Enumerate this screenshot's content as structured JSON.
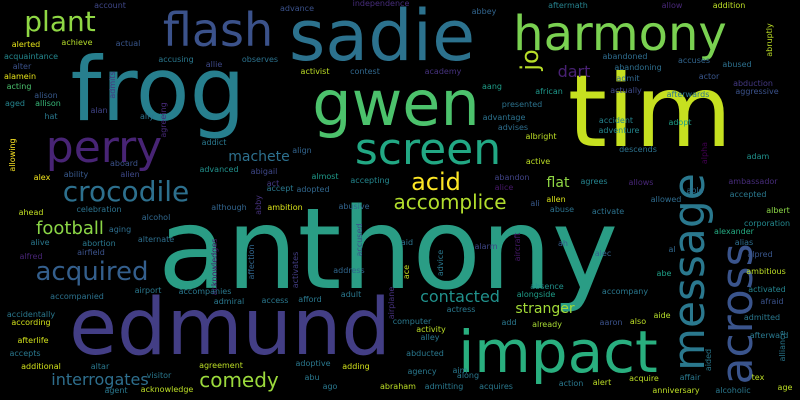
{
  "background_color": "#000000",
  "words": [
    {
      "text": "anthony",
      "color": "#2a9d85"
    },
    {
      "text": "tim",
      "color": "#c6e020"
    },
    {
      "text": "frog",
      "color": "#277f8e"
    },
    {
      "text": "edmund",
      "color": "#433e85"
    },
    {
      "text": "sadie",
      "color": "#2c728e"
    },
    {
      "text": "gwen",
      "color": "#4cc26c"
    },
    {
      "text": "impact",
      "color": "#29af7f"
    },
    {
      "text": "harmony",
      "color": "#7ad151"
    },
    {
      "text": "flash",
      "color": "#3b528b"
    },
    {
      "text": "screen",
      "color": "#22a884"
    },
    {
      "text": "perry",
      "color": "#482475"
    },
    {
      "text": "message",
      "color": "#2a788e"
    },
    {
      "text": "across",
      "color": "#3a548c"
    },
    {
      "text": "crocodile",
      "color": "#2d708e"
    },
    {
      "text": "acquired",
      "color": "#345f8d"
    },
    {
      "text": "plant",
      "color": "#8fd744"
    },
    {
      "text": "acid",
      "color": "#fde725"
    },
    {
      "text": "accomplice",
      "color": "#b2dd2d"
    },
    {
      "text": "comedy",
      "color": "#9bd93c"
    },
    {
      "text": "football",
      "color": "#8bd646"
    },
    {
      "text": "interrogates",
      "color": "#2e6f8e"
    },
    {
      "text": "contacted",
      "color": "#21918c"
    },
    {
      "text": "machete",
      "color": "#2d708e"
    },
    {
      "text": "stranger",
      "color": "#a2da37"
    },
    {
      "text": "jo",
      "color": "#b8de29"
    },
    {
      "text": "dart",
      "color": "#482173"
    },
    {
      "text": "flat",
      "color": "#8fd744"
    },
    {
      "text": "account",
      "color": "#3f4788"
    },
    {
      "text": "advance",
      "color": "#3b528b"
    },
    {
      "text": "independence",
      "color": "#472d7b"
    },
    {
      "text": "allow",
      "color": "#482878"
    },
    {
      "text": "addition",
      "color": "#bddf26"
    },
    {
      "text": "abbey",
      "color": "#32658e"
    },
    {
      "text": "aftermath",
      "color": "#26828e"
    },
    {
      "text": "alerted",
      "color": "#e5e419"
    },
    {
      "text": "achieve",
      "color": "#b5de2b"
    },
    {
      "text": "actual",
      "color": "#39568c"
    },
    {
      "text": "acquaintance",
      "color": "#24878e"
    },
    {
      "text": "accusing",
      "color": "#2a788e"
    },
    {
      "text": "allie",
      "color": "#3e4989"
    },
    {
      "text": "observes",
      "color": "#2c728e"
    },
    {
      "text": "activist",
      "color": "#bddf26"
    },
    {
      "text": "contest",
      "color": "#31688e"
    },
    {
      "text": "academy",
      "color": "#46327e"
    },
    {
      "text": "abandoned",
      "color": "#2f6c8e"
    },
    {
      "text": "abandoning",
      "color": "#2e6f8e"
    },
    {
      "text": "accuses",
      "color": "#32658e"
    },
    {
      "text": "abused",
      "color": "#2d708e"
    },
    {
      "text": "alter",
      "color": "#3b528b"
    },
    {
      "text": "alamein",
      "color": "#e7e419"
    },
    {
      "text": "acting",
      "color": "#4ac16d"
    },
    {
      "text": "admits",
      "color": "#453781"
    },
    {
      "text": "admit",
      "color": "#31688e"
    },
    {
      "text": "actor",
      "color": "#39568c"
    },
    {
      "text": "abduction",
      "color": "#443983"
    },
    {
      "text": "aggressive",
      "color": "#3b528b"
    },
    {
      "text": "actually",
      "color": "#3e4989"
    },
    {
      "text": "alison",
      "color": "#38598c"
    },
    {
      "text": "allison",
      "color": "#37b878"
    },
    {
      "text": "alan",
      "color": "#414487"
    },
    {
      "text": "aged",
      "color": "#25848e"
    },
    {
      "text": "aang",
      "color": "#1f9e89"
    },
    {
      "text": "african",
      "color": "#1f988b"
    },
    {
      "text": "afterwards",
      "color": "#2a768e"
    },
    {
      "text": "ally",
      "color": "#2c728e"
    },
    {
      "text": "agreeing",
      "color": "#472a7a"
    },
    {
      "text": "presented",
      "color": "#2c738e"
    },
    {
      "text": "advantage",
      "color": "#2c728e"
    },
    {
      "text": "advises",
      "color": "#2e6e8e"
    },
    {
      "text": "accident",
      "color": "#25848e"
    },
    {
      "text": "adventure",
      "color": "#24868e"
    },
    {
      "text": "adopt",
      "color": "#1fa088"
    },
    {
      "text": "hat",
      "color": "#2a788e"
    },
    {
      "text": "addict",
      "color": "#2a788e"
    },
    {
      "text": "align",
      "color": "#32648e"
    },
    {
      "text": "albright",
      "color": "#bddf26"
    },
    {
      "text": "alpha",
      "color": "#440154"
    },
    {
      "text": "descends",
      "color": "#2c728e"
    },
    {
      "text": "adam",
      "color": "#20928c"
    },
    {
      "text": "ability",
      "color": "#38598c"
    },
    {
      "text": "alien",
      "color": "#3e4989"
    },
    {
      "text": "abigail",
      "color": "#3f4889"
    },
    {
      "text": "advanced",
      "color": "#21918c"
    },
    {
      "text": "act",
      "color": "#453882"
    },
    {
      "text": "almost",
      "color": "#1f9a8a"
    },
    {
      "text": "active",
      "color": "#bddf26"
    },
    {
      "text": "alice",
      "color": "#48186a"
    },
    {
      "text": "abandon",
      "color": "#414487"
    },
    {
      "text": "aboard",
      "color": "#3b528b"
    },
    {
      "text": "alex",
      "color": "#f1e51d"
    },
    {
      "text": "accepting",
      "color": "#24878e"
    },
    {
      "text": "accept",
      "color": "#2a788e"
    },
    {
      "text": "adopted",
      "color": "#31678e"
    },
    {
      "text": "agrees",
      "color": "#25838e"
    },
    {
      "text": "allows",
      "color": "#482677"
    },
    {
      "text": "able",
      "color": "#2e6e8e"
    },
    {
      "text": "ambassador",
      "color": "#472c7a"
    },
    {
      "text": "accepted",
      "color": "#2a788e"
    },
    {
      "text": "corporation",
      "color": "#23888e"
    },
    {
      "text": "allowing",
      "color": "#fde725"
    },
    {
      "text": "ahead",
      "color": "#c2df23"
    },
    {
      "text": "celebration",
      "color": "#2c728e"
    },
    {
      "text": "alcohol",
      "color": "#31688e"
    },
    {
      "text": "although",
      "color": "#32658e"
    },
    {
      "text": "ambition",
      "color": "#dae319"
    },
    {
      "text": "abusive",
      "color": "#32648e"
    },
    {
      "text": "ali",
      "color": "#38598c"
    },
    {
      "text": "allen",
      "color": "#d8e219"
    },
    {
      "text": "abuse",
      "color": "#2c728e"
    },
    {
      "text": "activate",
      "color": "#2c728e"
    },
    {
      "text": "allowed",
      "color": "#2f6c8e"
    },
    {
      "text": "albert",
      "color": "#8bd646"
    },
    {
      "text": "aging",
      "color": "#2e6e8e"
    },
    {
      "text": "alternate",
      "color": "#2e6f8e"
    },
    {
      "text": "abby",
      "color": "#46327e"
    },
    {
      "text": "accused",
      "color": "#3c508b"
    },
    {
      "text": "aid",
      "color": "#2c738e"
    },
    {
      "text": "alarm",
      "color": "#3f4788"
    },
    {
      "text": "aircraft",
      "color": "#481a6c"
    },
    {
      "text": "ah",
      "color": "#365c8d"
    },
    {
      "text": "alec",
      "color": "#33638d"
    },
    {
      "text": "alexander",
      "color": "#25ab82"
    },
    {
      "text": "al",
      "color": "#31688e"
    },
    {
      "text": "alias",
      "color": "#2e6e8e"
    },
    {
      "text": "alfred",
      "color": "#482576"
    },
    {
      "text": "alive",
      "color": "#2a788e"
    },
    {
      "text": "airfield",
      "color": "#3b528b"
    },
    {
      "text": "abortion",
      "color": "#2a788e"
    },
    {
      "text": "acknowledges",
      "color": "#471365"
    },
    {
      "text": "affection",
      "color": "#31668e"
    },
    {
      "text": "activates",
      "color": "#433e85"
    },
    {
      "text": "address",
      "color": "#31678e"
    },
    {
      "text": "ace",
      "color": "#c8e020"
    },
    {
      "text": "advice",
      "color": "#2a788e"
    },
    {
      "text": "airplane",
      "color": "#46327e"
    },
    {
      "text": "abe",
      "color": "#1fa088"
    },
    {
      "text": "ambitious",
      "color": "#bddf26"
    },
    {
      "text": "alpred",
      "color": "#39568c"
    },
    {
      "text": "activated",
      "color": "#25838e"
    },
    {
      "text": "afraid",
      "color": "#3b528b"
    },
    {
      "text": "accompanied",
      "color": "#2c728e"
    },
    {
      "text": "airport",
      "color": "#2a788e"
    },
    {
      "text": "accompanies",
      "color": "#2a788e"
    },
    {
      "text": "admiral",
      "color": "#2a788e"
    },
    {
      "text": "access",
      "color": "#2a788e"
    },
    {
      "text": "afford",
      "color": "#2a788e"
    },
    {
      "text": "adult",
      "color": "#2a788e"
    },
    {
      "text": "alongside",
      "color": "#1f9e89"
    },
    {
      "text": "absence",
      "color": "#21918c"
    },
    {
      "text": "accompany",
      "color": "#2a788e"
    },
    {
      "text": "aide",
      "color": "#b5de2b"
    },
    {
      "text": "admitted",
      "color": "#2a788e"
    },
    {
      "text": "accidentally",
      "color": "#2a788e"
    },
    {
      "text": "according",
      "color": "#d2e21b"
    },
    {
      "text": "actress",
      "color": "#2a788e"
    },
    {
      "text": "add",
      "color": "#2a788e"
    },
    {
      "text": "already",
      "color": "#a8db34"
    },
    {
      "text": "aaron",
      "color": "#3b528b"
    },
    {
      "text": "also",
      "color": "#bddf26"
    },
    {
      "text": "computer",
      "color": "#2a788e"
    },
    {
      "text": "activity",
      "color": "#bddf26"
    },
    {
      "text": "alley",
      "color": "#2a788e"
    },
    {
      "text": "afterlife",
      "color": "#d2e21b"
    },
    {
      "text": "accepts",
      "color": "#2a788e"
    },
    {
      "text": "agreement",
      "color": "#bddf26"
    },
    {
      "text": "adoptive",
      "color": "#2a788e"
    },
    {
      "text": "abducted",
      "color": "#2a788e"
    },
    {
      "text": "aim",
      "color": "#2a788e"
    },
    {
      "text": "aided",
      "color": "#2a788e"
    },
    {
      "text": "afterward",
      "color": "#2a788e"
    },
    {
      "text": "alliance",
      "color": "#2a788e"
    },
    {
      "text": "additional",
      "color": "#d2e21b"
    },
    {
      "text": "altar",
      "color": "#2a788e"
    },
    {
      "text": "visitor",
      "color": "#2a788e"
    },
    {
      "text": "abu",
      "color": "#2a788e"
    },
    {
      "text": "adding",
      "color": "#d2e21b"
    },
    {
      "text": "agency",
      "color": "#2a788e"
    },
    {
      "text": "along",
      "color": "#2a788e"
    },
    {
      "text": "acquire",
      "color": "#bddf26"
    },
    {
      "text": "affair",
      "color": "#2a788e"
    },
    {
      "text": "tex",
      "color": "#bddf26"
    },
    {
      "text": "agent",
      "color": "#2a788e"
    },
    {
      "text": "acknowledge",
      "color": "#bddf26"
    },
    {
      "text": "ago",
      "color": "#2a788e"
    },
    {
      "text": "abraham",
      "color": "#bddf26"
    },
    {
      "text": "admitting",
      "color": "#2a788e"
    },
    {
      "text": "acquires",
      "color": "#2a788e"
    },
    {
      "text": "action",
      "color": "#2a788e"
    },
    {
      "text": "alert",
      "color": "#bddf26"
    },
    {
      "text": "anniversary",
      "color": "#bddf26"
    },
    {
      "text": "alcoholic",
      "color": "#2a788e"
    },
    {
      "text": "age",
      "color": "#bddf26"
    },
    {
      "text": "abruptly",
      "color": "#bddf26"
    }
  ]
}
